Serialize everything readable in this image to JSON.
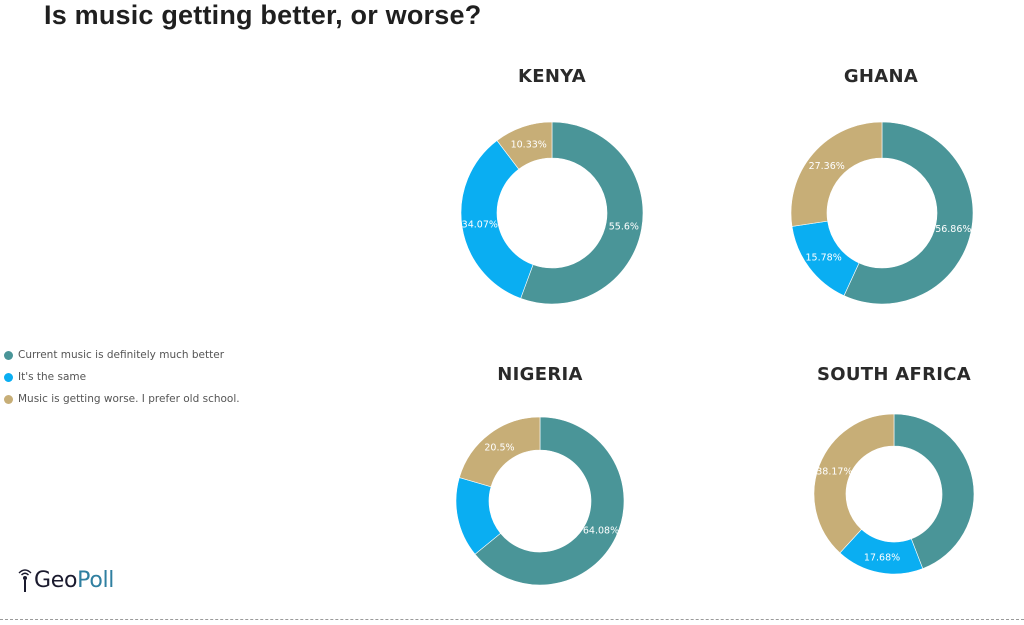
{
  "title": "Is music getting better, or worse?",
  "legend": [
    {
      "label": "Current music is definitely much better",
      "color": "#4a9598"
    },
    {
      "label": "It's the same",
      "color": "#0aaef2"
    },
    {
      "label": "Music is getting worse. I prefer old school.",
      "color": "#c7ae77"
    }
  ],
  "logo": {
    "geo": "Geo",
    "poll": "Poll"
  },
  "chart_data": [
    {
      "type": "pie",
      "title": "KENYA",
      "categories": [
        "Current music is definitely much better",
        "It's the same",
        "Music is getting worse. I prefer old school."
      ],
      "values": [
        55.6,
        34.07,
        10.33
      ],
      "labels": [
        "55.6%",
        "34.07%",
        "10.33%"
      ]
    },
    {
      "type": "pie",
      "title": "GHANA",
      "categories": [
        "Current music is definitely much better",
        "It's the same",
        "Music is getting worse. I prefer old school."
      ],
      "values": [
        56.86,
        15.78,
        27.36
      ],
      "labels": [
        "56.86%",
        "15.78%",
        "27.36%"
      ]
    },
    {
      "type": "pie",
      "title": "NIGERIA",
      "categories": [
        "Current music is definitely much better",
        "It's the same",
        "Music is getting worse. I prefer old school."
      ],
      "values": [
        64.08,
        15.42,
        20.5
      ],
      "labels": [
        "64.08%",
        "",
        "20.5%"
      ]
    },
    {
      "type": "pie",
      "title": "SOUTH AFRICA",
      "categories": [
        "Current music is definitely much better",
        "It's the same",
        "Music is getting worse. I prefer old school."
      ],
      "values": [
        44.15,
        17.68,
        38.17
      ],
      "labels": [
        "",
        "17.68%",
        "38.17%"
      ]
    }
  ]
}
